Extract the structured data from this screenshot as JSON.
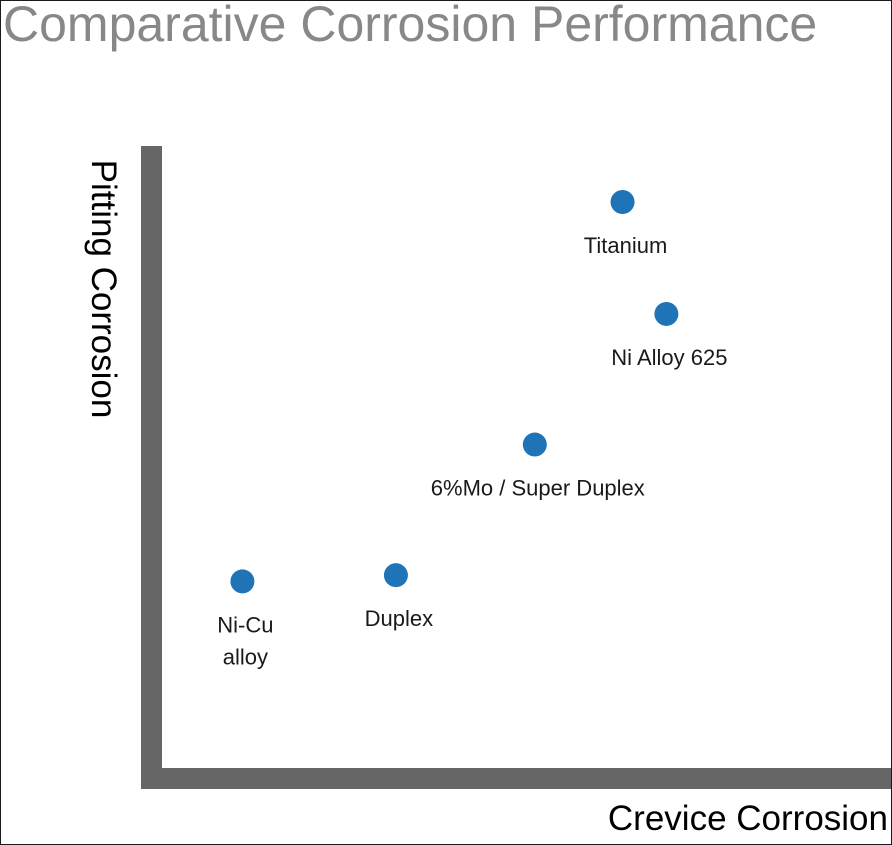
{
  "chart_data": {
    "type": "scatter",
    "title": "Comparative Corrosion Performance",
    "xlabel": "Crevice Corrosion",
    "ylabel": "Pitting Corrosion",
    "grid": false,
    "legend": "none",
    "colors": {
      "title": "#888888",
      "axis": "#666666",
      "point": "#1f73b7",
      "label": "#1a1a1a"
    },
    "points": [
      {
        "label": "Ni-Cu\nalloy",
        "x": 0.11,
        "y": 0.3
      },
      {
        "label": "Duplex",
        "x": 0.32,
        "y": 0.31
      },
      {
        "label": "6%Mo / Super Duplex",
        "x": 0.51,
        "y": 0.52
      },
      {
        "label": "Ni Alloy 625",
        "x": 0.69,
        "y": 0.73
      },
      {
        "label": "Titanium",
        "x": 0.63,
        "y": 0.91
      }
    ]
  }
}
